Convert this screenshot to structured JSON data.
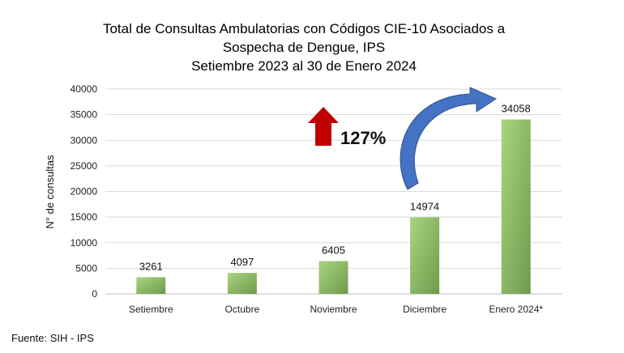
{
  "chart_data": {
    "type": "bar",
    "title": [
      "Total de Consultas Ambulatorias con Códigos CIE-10 Asociados a",
      "Sospecha de Dengue, IPS",
      "Setiembre 2023 al 30 de Enero 2024"
    ],
    "xlabel": "",
    "ylabel": "N° de consultas",
    "categories": [
      "Setiembre",
      "Octubre",
      "Noviembre",
      "Diciembre",
      "Enero 2024*"
    ],
    "values": [
      3261,
      4097,
      6405,
      14974,
      34058
    ],
    "ylim": [
      0,
      40000
    ],
    "yticks": [
      0,
      5000,
      10000,
      15000,
      20000,
      25000,
      30000,
      35000,
      40000
    ],
    "grid": true,
    "bar_color": "#8cbf64",
    "annotation": {
      "text": "127%",
      "up_arrow_color": "#c00000",
      "curved_arrow_color": "#4472c4"
    }
  },
  "footer": {
    "source": "Fuente: SIH - IPS"
  }
}
